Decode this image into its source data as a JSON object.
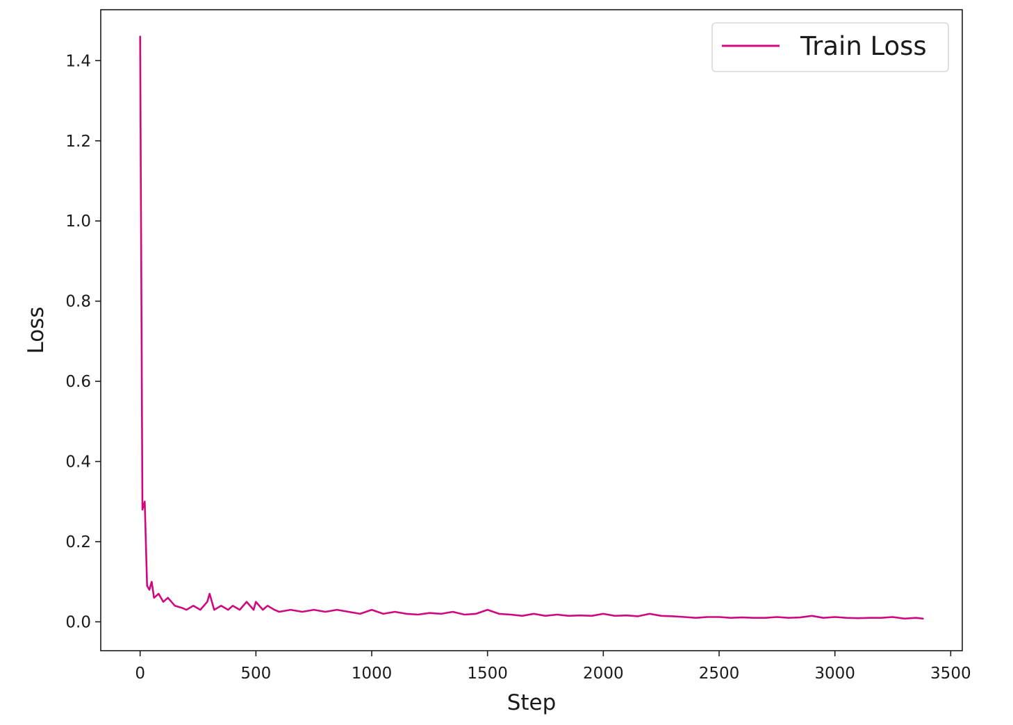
{
  "chart_data": {
    "type": "line",
    "title": "",
    "xlabel": "Step",
    "ylabel": "Loss",
    "xlim": [
      -170,
      3550
    ],
    "ylim": [
      -0.072,
      1.527
    ],
    "xticks": [
      0,
      500,
      1000,
      1500,
      2000,
      2500,
      3000,
      3500
    ],
    "xtick_labels": [
      "0",
      "500",
      "1000",
      "1500",
      "2000",
      "2500",
      "3000",
      "3500"
    ],
    "yticks": [
      0.0,
      0.2,
      0.4,
      0.6,
      0.8,
      1.0,
      1.2,
      1.4
    ],
    "ytick_labels": [
      "0.0",
      "0.2",
      "0.4",
      "0.6",
      "0.8",
      "1.0",
      "1.2",
      "1.4"
    ],
    "grid": false,
    "legend_position": "top-right",
    "series": [
      {
        "name": "Train Loss",
        "color": "#d0087f",
        "x": [
          0,
          10,
          20,
          30,
          40,
          50,
          60,
          80,
          100,
          120,
          150,
          180,
          200,
          230,
          260,
          290,
          300,
          320,
          350,
          380,
          400,
          430,
          460,
          490,
          500,
          530,
          550,
          580,
          600,
          650,
          700,
          750,
          800,
          850,
          900,
          950,
          1000,
          1050,
          1100,
          1150,
          1200,
          1250,
          1300,
          1350,
          1400,
          1450,
          1500,
          1550,
          1600,
          1650,
          1700,
          1750,
          1800,
          1850,
          1900,
          1950,
          2000,
          2050,
          2100,
          2150,
          2200,
          2250,
          2300,
          2350,
          2400,
          2450,
          2500,
          2550,
          2600,
          2650,
          2700,
          2750,
          2800,
          2850,
          2900,
          2950,
          3000,
          3050,
          3100,
          3150,
          3200,
          3250,
          3300,
          3350,
          3380
        ],
        "values": [
          1.46,
          0.28,
          0.3,
          0.09,
          0.08,
          0.1,
          0.06,
          0.07,
          0.05,
          0.06,
          0.04,
          0.035,
          0.03,
          0.04,
          0.03,
          0.05,
          0.07,
          0.03,
          0.04,
          0.03,
          0.04,
          0.03,
          0.05,
          0.03,
          0.05,
          0.03,
          0.04,
          0.03,
          0.025,
          0.03,
          0.025,
          0.03,
          0.025,
          0.03,
          0.025,
          0.02,
          0.03,
          0.02,
          0.025,
          0.02,
          0.018,
          0.022,
          0.02,
          0.025,
          0.018,
          0.02,
          0.03,
          0.02,
          0.018,
          0.015,
          0.02,
          0.015,
          0.018,
          0.015,
          0.016,
          0.015,
          0.02,
          0.015,
          0.016,
          0.014,
          0.02,
          0.015,
          0.014,
          0.012,
          0.01,
          0.012,
          0.012,
          0.01,
          0.011,
          0.01,
          0.01,
          0.012,
          0.01,
          0.011,
          0.015,
          0.01,
          0.012,
          0.01,
          0.009,
          0.01,
          0.01,
          0.012,
          0.008,
          0.01,
          0.008
        ]
      }
    ]
  }
}
